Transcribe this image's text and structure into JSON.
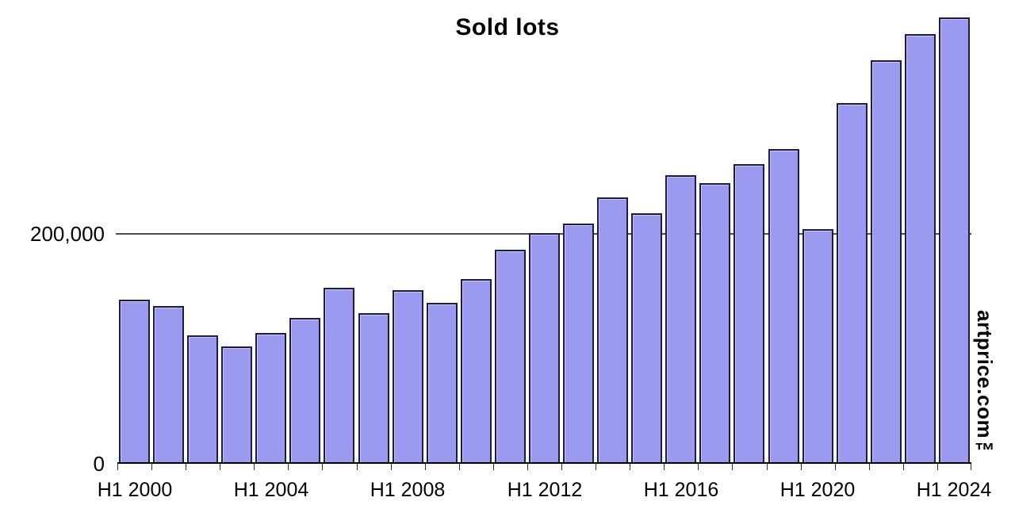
{
  "page": {
    "background": "#ffffff"
  },
  "chart_data": {
    "type": "bar",
    "title": "Sold lots",
    "categories": [
      "H1 2000",
      "H1 2001",
      "H1 2002",
      "H1 2003",
      "H1 2004",
      "H1 2005",
      "H1 2006",
      "H1 2007",
      "H1 2008",
      "H1 2009",
      "H1 2010",
      "H1 2011",
      "H1 2012",
      "H1 2013",
      "H1 2014",
      "H1 2015",
      "H1 2016",
      "H1 2017",
      "H1 2018",
      "H1 2019",
      "H1 2020",
      "H1 2021",
      "H1 2022",
      "H1 2023",
      "H1 2024"
    ],
    "values": [
      143000,
      137000,
      112000,
      102000,
      114000,
      127000,
      153000,
      131000,
      151000,
      140000,
      161000,
      186000,
      201000,
      209000,
      232000,
      218000,
      251000,
      244000,
      261000,
      274000,
      204000,
      314000,
      351000,
      374000,
      388000
    ],
    "xlabel": "",
    "ylabel": "",
    "x_tick_labels": [
      "H1 2000",
      "H1 2004",
      "H1 2008",
      "H1 2012",
      "H1 2016",
      "H1 2020",
      "H1 2024"
    ],
    "x_tick_every": 4,
    "y_tick_labels": [
      "0",
      "200,000"
    ],
    "y_gridline_value": 200000,
    "ylim": [
      0,
      403000
    ],
    "grid": "single horizontal gridline at 200,000",
    "legend_position": "none",
    "bar_fill_color": "#9a9af1",
    "bar_border_color": "#1e1e3c",
    "gridline_color": "#4d4d4d",
    "axis_color": "#000000"
  },
  "watermark": {
    "text": "artprice.com™"
  }
}
